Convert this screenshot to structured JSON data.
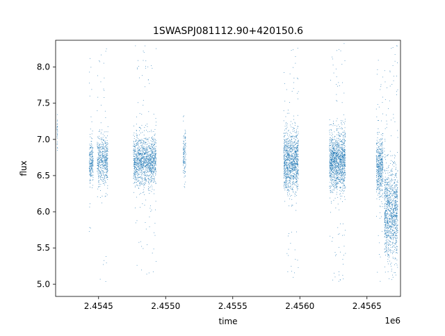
{
  "chart_data": {
    "type": "scatter",
    "title": "1SWASPJ081112.90+420150.6",
    "xlabel": "time",
    "ylabel": "flux",
    "x_offset_label": "1e6",
    "xlim": [
      2.45418,
      2.45675
    ],
    "ylim": [
      4.83,
      8.37
    ],
    "x_ticks": [
      2.4545,
      2.455,
      2.4555,
      2.456,
      2.4565
    ],
    "x_tick_labels": [
      "2.4545",
      "2.4550",
      "2.4555",
      "2.4560",
      "2.4565"
    ],
    "y_ticks": [
      5.0,
      5.5,
      6.0,
      6.5,
      7.0,
      7.5,
      8.0
    ],
    "y_tick_labels": [
      "5.0",
      "5.5",
      "6.0",
      "6.5",
      "7.0",
      "7.5",
      "8.0"
    ],
    "grid": false,
    "marker_color": "#1f77b4",
    "series": [
      {
        "clusters": [
          {
            "x_range": [
              2.45419,
              2.454195
            ],
            "center": 7.1,
            "spread": 0.12,
            "y_range": [
              6.85,
              7.4
            ],
            "n": 30
          },
          {
            "x_range": [
              2.45443,
              2.45446
            ],
            "center": 6.68,
            "spread": 0.14,
            "y_range": [
              5.5,
              8.2
            ],
            "n": 220
          },
          {
            "x_range": [
              2.45449,
              2.45457
            ],
            "center": 6.7,
            "spread": 0.17,
            "y_range": [
              5.0,
              8.3
            ],
            "n": 520
          },
          {
            "x_range": [
              2.45476,
              2.45493
            ],
            "center": 6.7,
            "spread": 0.17,
            "y_range": [
              5.1,
              8.3
            ],
            "n": 1300
          },
          {
            "x_range": [
              2.45513,
              2.45515
            ],
            "center": 6.78,
            "spread": 0.15,
            "y_range": [
              6.2,
              7.4
            ],
            "n": 120
          },
          {
            "x_range": [
              2.45588,
              2.45599
            ],
            "center": 6.7,
            "spread": 0.2,
            "y_range": [
              5.0,
              8.27
            ],
            "n": 1100
          },
          {
            "x_range": [
              2.45622,
              2.45634
            ],
            "center": 6.7,
            "spread": 0.2,
            "y_range": [
              5.0,
              8.33
            ],
            "n": 1300
          },
          {
            "x_range": [
              2.45657,
              2.45662
            ],
            "center": 6.6,
            "spread": 0.2,
            "y_range": [
              5.0,
              8.3
            ],
            "n": 500
          },
          {
            "x_range": [
              2.45663,
              2.45673
            ],
            "center": 6.0,
            "spread": 0.3,
            "y_range": [
              5.0,
              8.3
            ],
            "n": 1100
          }
        ]
      }
    ]
  }
}
